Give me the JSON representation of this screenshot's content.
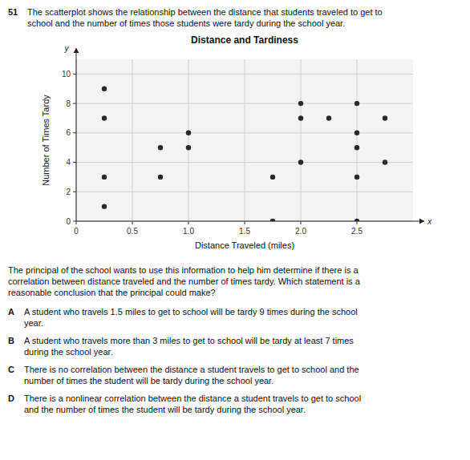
{
  "chart_data": {
    "type": "scatter",
    "title": "Distance and Tardiness",
    "xlabel": "Distance Traveled (miles)",
    "ylabel": "Number of Times Tardy",
    "x": [
      0.25,
      0.25,
      0.25,
      0.25,
      0.75,
      0.75,
      1.0,
      1.0,
      1.75,
      1.75,
      2.0,
      2.0,
      2.0,
      2.25,
      2.5,
      2.5,
      2.5,
      2.5,
      2.5,
      2.75,
      2.75
    ],
    "values": [
      9,
      7,
      3,
      1,
      3,
      5,
      5,
      6,
      3,
      0,
      8,
      7,
      4,
      7,
      8,
      6,
      5,
      3,
      0,
      7,
      4
    ],
    "color": "#2a2a2a",
    "xlim": [
      0,
      3.0
    ],
    "ylim": [
      0,
      11
    ],
    "xticks": [
      0,
      0.5,
      {
        "value": 1.0,
        "label": "1.0"
      },
      1.5,
      {
        "value": 2.0,
        "label": "2.0"
      },
      2.5
    ],
    "yticks": [
      0,
      2,
      4,
      6,
      8,
      10
    ],
    "grid": true,
    "annotations": [
      "x",
      "y"
    ]
  },
  "question": {
    "number": "51",
    "text": "The scatterplot shows the relationship between the distance that students traveled to get to\nschool and the number of times those students were tardy during the school year.",
    "prompt": "The principal of the school wants to use this information to help him determine if there is a\ncorrelation between distance traveled and the number of times tardy. Which statement is a\nreasonable conclusion that the principal could make?",
    "choices": [
      {
        "letter": "A",
        "text": "A student who travels 1.5 miles to get to school will be tardy 9 times during the school\nyear."
      },
      {
        "letter": "B",
        "text": "A student who travels more than 3 miles to get to school will be tardy at least 7 times\nduring the school year."
      },
      {
        "letter": "C",
        "text": "There is no correlation between the distance a student travels to get to school and the\nnumber of times the student will be tardy during the school year."
      },
      {
        "letter": "D",
        "text": "There is a nonlinear correlation between the distance a student travels to get to school\nand the number of times the student will be tardy during the school year."
      }
    ]
  }
}
